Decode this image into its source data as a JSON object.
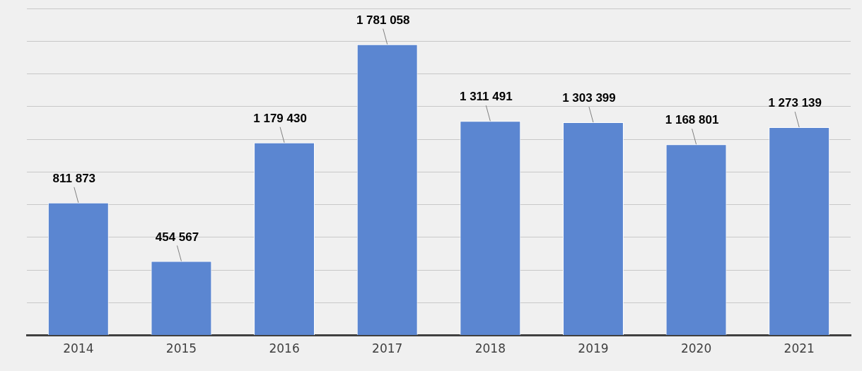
{
  "chart_data": {
    "type": "bar",
    "categories": [
      "2014",
      "2015",
      "2016",
      "2017",
      "2018",
      "2019",
      "2020",
      "2021"
    ],
    "values": [
      811873,
      454567,
      1179430,
      1781058,
      1311491,
      1303399,
      1168801,
      1273139
    ],
    "value_labels": [
      "811 873",
      "454 567",
      "1 179 430",
      "1 781 058",
      "1 311 491",
      "1 303 399",
      "1 168 801",
      "1 273 139"
    ],
    "color": "#5b86d1",
    "ylim": [
      0,
      2000000
    ],
    "yticks": [
      {
        "value": 0,
        "label": null
      },
      {
        "value": 200000,
        "label": null
      },
      {
        "value": 400000,
        "label": null
      },
      {
        "value": 600000,
        "label": null
      },
      {
        "value": 800000,
        "label": null
      },
      {
        "value": 1000000,
        "label": null
      },
      {
        "value": 1200000,
        "label": null
      },
      {
        "value": 1400000,
        "label": null
      },
      {
        "value": 1600000,
        "label": null
      },
      {
        "value": 1800000,
        "label": null
      },
      {
        "value": 2000000,
        "label": null
      }
    ],
    "grid": "y",
    "tick_labels": "x",
    "legend": false
  }
}
